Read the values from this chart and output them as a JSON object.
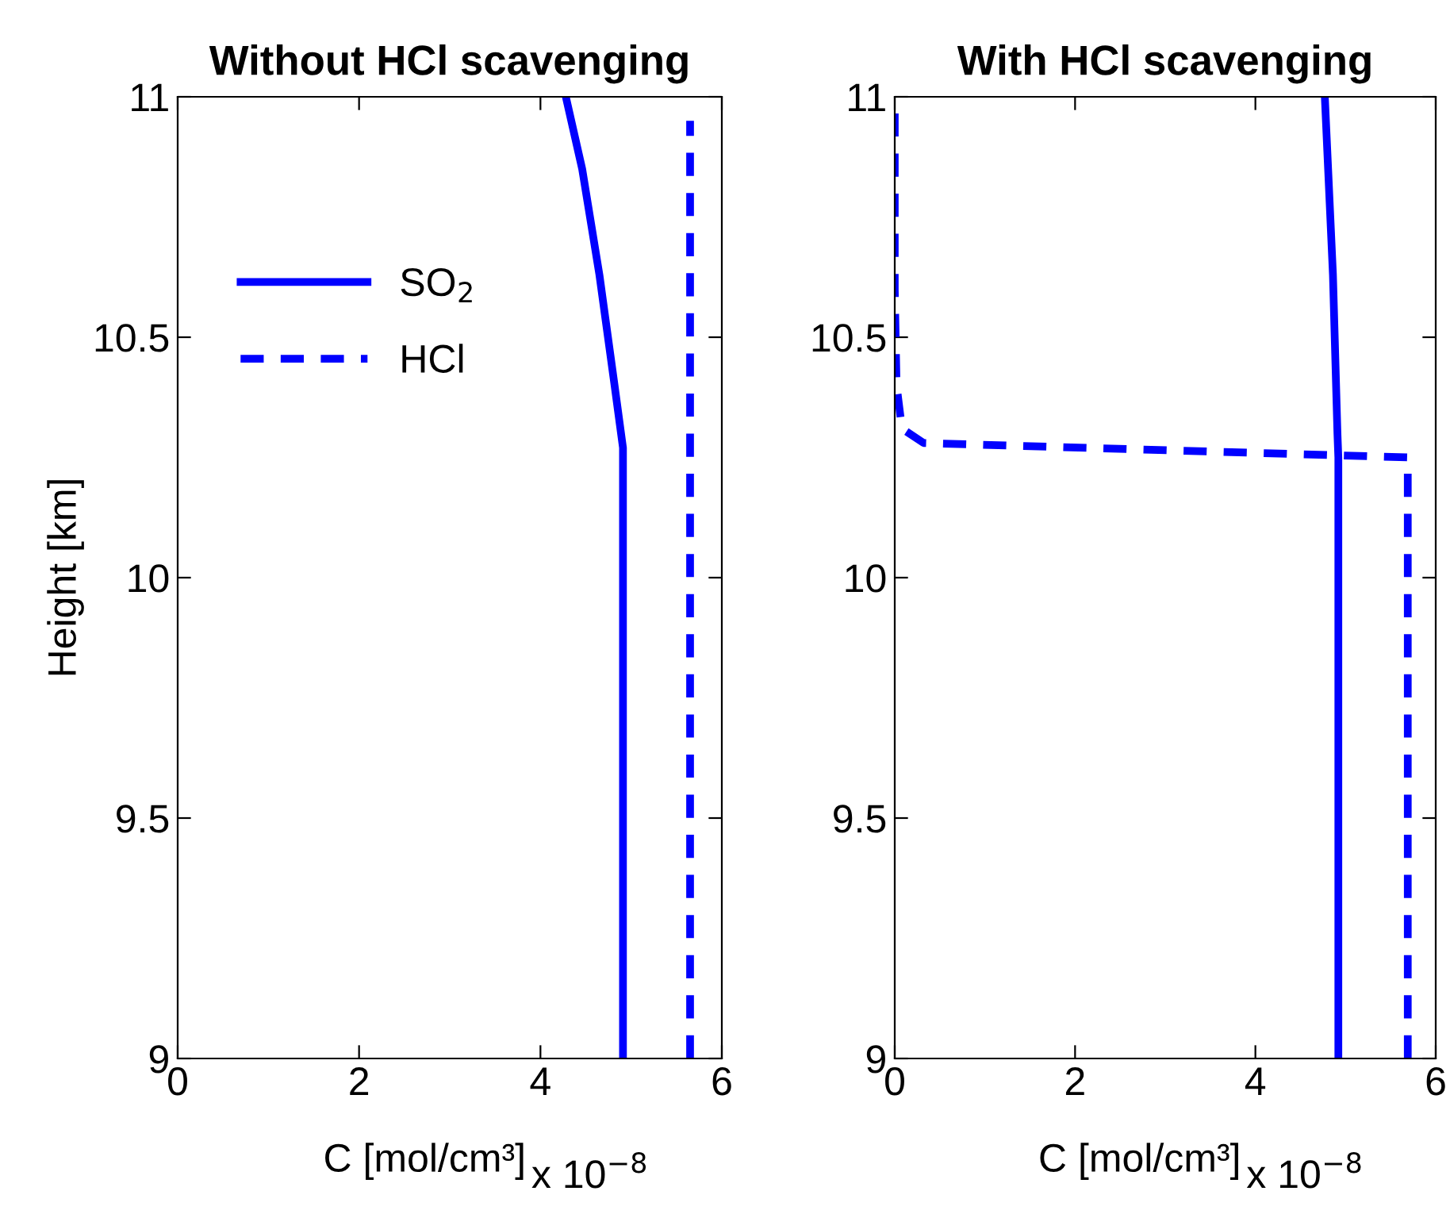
{
  "chart_data": [
    {
      "type": "line",
      "title": "Without HCl scavenging",
      "xlabel": "C [mol/cm³]",
      "ylabel": "Height [km]",
      "annotations": [
        "x 10$^{−8}$"
      ],
      "xlim": [
        0,
        6
      ],
      "xticks": [
        0,
        2,
        4,
        6
      ],
      "ylim": [
        9,
        11
      ],
      "yticks": [
        9,
        9.5,
        10,
        10.5,
        11
      ],
      "legend": "top left",
      "grid": false,
      "series": [
        {
          "name": "SO$_{2}$",
          "color": "#0000ff",
          "line_style": "solid",
          "x": [
            4.91,
            4.91,
            4.81,
            4.65,
            4.46,
            4.28
          ],
          "values": [
            9,
            10.27,
            10.41,
            10.63,
            10.85,
            11
          ]
        },
        {
          "name": "HCl",
          "color": "#0000ff",
          "line_style": "dashed",
          "x": [
            5.65,
            5.65
          ],
          "values": [
            9,
            10.95
          ]
        }
      ]
    },
    {
      "type": "line",
      "title": "With HCl scavenging",
      "xlabel": "C [mol/cm³]",
      "annotations": [
        "x 10$^{−8}$"
      ],
      "xlim": [
        0,
        6
      ],
      "xticks": [
        0,
        2,
        4,
        6
      ],
      "ylim": [
        9,
        11
      ],
      "yticks": [
        9,
        9.5,
        10,
        10.5,
        11
      ],
      "legend": false,
      "grid": false,
      "series": [
        {
          "color": "#0000ff",
          "line_style": "solid",
          "x": [
            4.92,
            4.92,
            4.91,
            4.86,
            4.77
          ],
          "values": [
            9,
            10.25,
            10.3,
            10.63,
            11
          ]
        },
        {
          "color": "#0000ff",
          "line_style": "dashed",
          "x": [
            5.69,
            5.69,
            0.32,
            0.08,
            0.02,
            0,
            0
          ],
          "values": [
            9,
            10.25,
            10.28,
            10.31,
            10.4,
            10.6,
            11
          ]
        }
      ]
    }
  ]
}
